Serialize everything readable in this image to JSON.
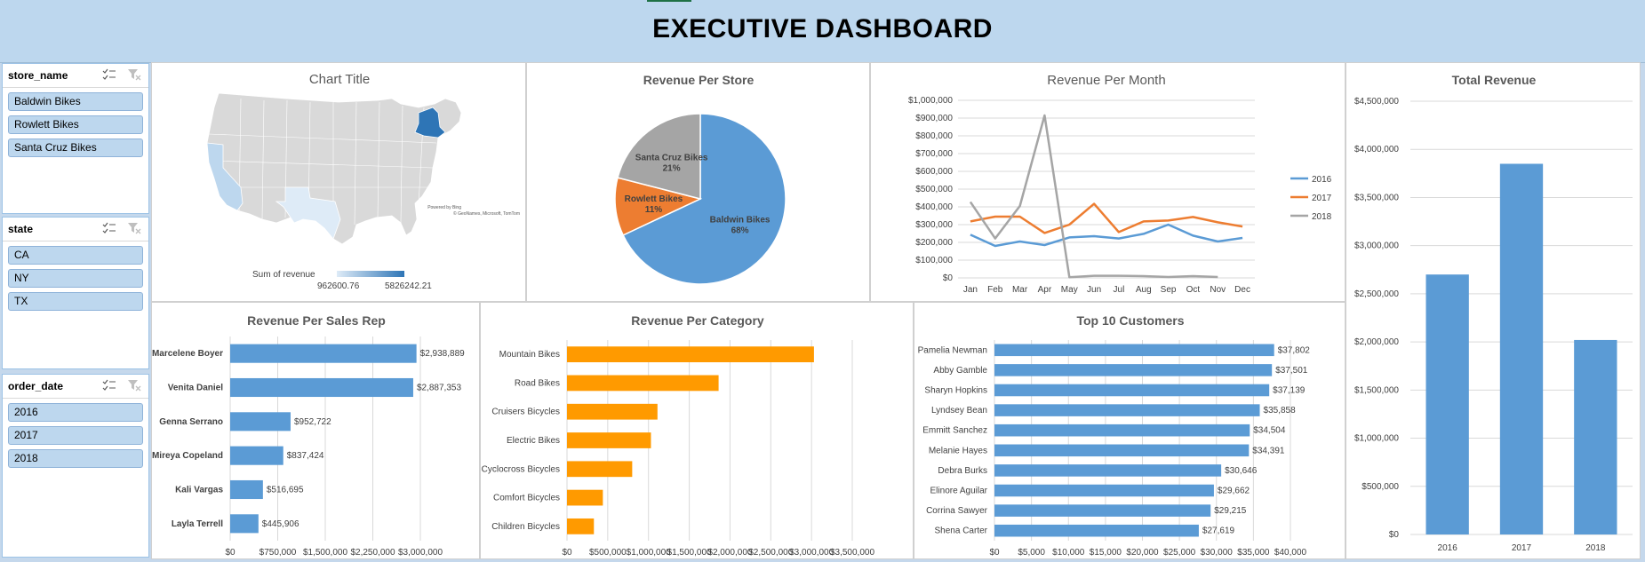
{
  "header": {
    "title": "EXECUTIVE DASHBOARD"
  },
  "colors": {
    "blue": "#5b9bd5",
    "orange": "#ed7d31",
    "gray": "#a5a5a5",
    "bar_orange": "#ff9a00",
    "header_bg": "#bdd7ee"
  },
  "slicers": [
    {
      "title": "store_name",
      "items": [
        "Baldwin Bikes",
        "Rowlett Bikes",
        "Santa Cruz Bikes"
      ]
    },
    {
      "title": "state",
      "items": [
        "CA",
        "NY",
        "TX"
      ]
    },
    {
      "title": "order_date",
      "items": [
        "2016",
        "2017",
        "2018"
      ]
    }
  ],
  "map": {
    "title": "Chart Title",
    "legend_title": "Sum of revenue",
    "legend_min": "962600.76",
    "legend_max": "5826242.21",
    "attribution_1": "Powered by Bing",
    "attribution_2": "© GeoNames, Microsoft, TomTom"
  },
  "chart_data": [
    {
      "id": "revenue_per_store",
      "type": "pie",
      "title": "Revenue Per Store",
      "categories": [
        "Baldwin Bikes",
        "Rowlett Bikes",
        "Santa Cruz Bikes"
      ],
      "values": [
        68,
        11,
        21
      ],
      "labels": [
        "68%",
        "11%",
        "21%"
      ]
    },
    {
      "id": "revenue_per_month",
      "type": "line",
      "title": "Revenue Per Month",
      "categories": [
        "Jan",
        "Feb",
        "Mar",
        "Apr",
        "May",
        "Jun",
        "Jul",
        "Aug",
        "Sep",
        "Oct",
        "Nov",
        "Dec"
      ],
      "series": [
        {
          "name": "2016",
          "values": [
            243000,
            180000,
            205000,
            185000,
            228000,
            235000,
            222000,
            248000,
            300000,
            238000,
            205000,
            225000
          ]
        },
        {
          "name": "2017",
          "values": [
            318000,
            345000,
            345000,
            253000,
            300000,
            417000,
            258000,
            318000,
            323000,
            343000,
            313000,
            289000
          ]
        },
        {
          "name": "2018",
          "values": [
            428000,
            222000,
            405000,
            915000,
            4000,
            12000,
            12000,
            10000,
            5000,
            10000,
            5000,
            null
          ]
        }
      ],
      "yticks": [
        "$0",
        "$100,000",
        "$200,000",
        "$300,000",
        "$400,000",
        "$500,000",
        "$600,000",
        "$700,000",
        "$800,000",
        "$900,000",
        "$1,000,000"
      ],
      "ylim": [
        0,
        1000000
      ],
      "legend": "right"
    },
    {
      "id": "total_revenue",
      "type": "bar",
      "title": "Total Revenue",
      "categories": [
        "2016",
        "2017",
        "2018"
      ],
      "values": [
        2700000,
        3850000,
        2020000
      ],
      "yticks": [
        "$0",
        "$500,000",
        "$1,000,000",
        "$1,500,000",
        "$2,000,000",
        "$2,500,000",
        "$3,000,000",
        "$3,500,000",
        "$4,000,000",
        "$4,500,000"
      ],
      "ylim": [
        0,
        4500000
      ]
    },
    {
      "id": "revenue_per_sales_rep",
      "type": "bar",
      "orientation": "horizontal",
      "title": "Revenue Per Sales Rep",
      "categories": [
        "Marcelene Boyer",
        "Venita Daniel",
        "Genna Serrano",
        "Mireya Copeland",
        "Kali Vargas",
        "Layla Terrell"
      ],
      "values": [
        2938889,
        2887353,
        952722,
        837424,
        516695,
        445906
      ],
      "labels": [
        "$2,938,889",
        "$2,887,353",
        "$952,722",
        "$837,424",
        "$516,695",
        "$445,906"
      ],
      "xticks": [
        "$0",
        "$750,000",
        "$1,500,000",
        "$2,250,000",
        "$3,000,000"
      ],
      "xlim": [
        0,
        3000000
      ]
    },
    {
      "id": "revenue_per_category",
      "type": "bar",
      "orientation": "horizontal",
      "title": "Revenue Per Category",
      "categories": [
        "Mountain Bikes",
        "Road Bikes",
        "Cruisers Bicycles",
        "Electric Bikes",
        "Cyclocross Bicycles",
        "Comfort Bicycles",
        "Children Bicycles"
      ],
      "values": [
        3030000,
        1860000,
        1110000,
        1030000,
        800000,
        440000,
        330000
      ],
      "xticks": [
        "$0",
        "$500,000",
        "$1,000,000",
        "$1,500,000",
        "$2,000,000",
        "$2,500,000",
        "$3,000,000",
        "$3,500,000"
      ],
      "xlim": [
        0,
        3500000
      ]
    },
    {
      "id": "top_10_customers",
      "type": "bar",
      "orientation": "horizontal",
      "title": "Top 10 Customers",
      "categories": [
        "Pamelia Newman",
        "Abby Gamble",
        "Sharyn Hopkins",
        "Lyndsey Bean",
        "Emmitt Sanchez",
        "Melanie Hayes",
        "Debra Burks",
        "Elinore Aguilar",
        "Corrina Sawyer",
        "Shena Carter"
      ],
      "values": [
        37802,
        37501,
        37139,
        35858,
        34504,
        34391,
        30646,
        29662,
        29215,
        27619
      ],
      "labels": [
        "$37,802",
        "$37,501",
        "$37,139",
        "$35,858",
        "$34,504",
        "$34,391",
        "$30,646",
        "$29,662",
        "$29,215",
        "$27,619"
      ],
      "xticks": [
        "$0",
        "$5,000",
        "$10,000",
        "$15,000",
        "$20,000",
        "$25,000",
        "$30,000",
        "$35,000",
        "$40,000"
      ],
      "xlim": [
        0,
        40000
      ]
    }
  ]
}
